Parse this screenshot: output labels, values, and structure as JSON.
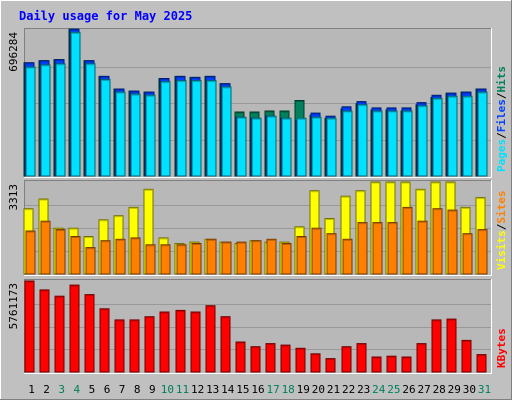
{
  "title": "Daily usage for May 2025",
  "colors": {
    "background": "#c0c0c0",
    "plot_background": "#b8b8b8",
    "title": "#0000ff",
    "hits": "#00805c",
    "files": "#0040ff",
    "pages": "#00e0ff",
    "visits": "#ffff00",
    "sites": "#ff8000",
    "kbytes": "#ff0000",
    "weekend_day": "#00805c",
    "weekday": "#000000"
  },
  "chart_data": [
    {
      "type": "bar",
      "panel": "hits-files-pages",
      "y_tick_label": "696284",
      "ylim": [
        0,
        696284
      ],
      "grid": true,
      "legend_placement": "right",
      "legend": [
        {
          "text": "Hits",
          "color": "#00805c"
        },
        {
          "text": "/",
          "color": "#000000"
        },
        {
          "text": "Files",
          "color": "#0040ff"
        },
        {
          "text": "/",
          "color": "#000000"
        },
        {
          "text": "Pages",
          "color": "#00e0ff"
        }
      ],
      "categories": [
        "1",
        "2",
        "3",
        "4",
        "5",
        "6",
        "7",
        "8",
        "9",
        "10",
        "11",
        "12",
        "13",
        "14",
        "15",
        "16",
        "17",
        "18",
        "19",
        "20",
        "21",
        "22",
        "23",
        "24",
        "25",
        "26",
        "27",
        "28",
        "29",
        "30",
        "31"
      ],
      "series": [
        {
          "name": "Hits",
          "color": "#00805c",
          "values": [
            540000,
            550000,
            555000,
            700000,
            550000,
            475000,
            415000,
            405000,
            400000,
            465000,
            475000,
            470000,
            475000,
            440000,
            305000,
            305000,
            310000,
            310000,
            360000,
            290000,
            275000,
            320000,
            345000,
            315000,
            315000,
            310000,
            340000,
            375000,
            395000,
            400000,
            415000
          ]
        },
        {
          "name": "Files",
          "color": "#0040ff",
          "values": [
            540000,
            550000,
            555000,
            700000,
            550000,
            475000,
            415000,
            405000,
            400000,
            465000,
            475000,
            470000,
            475000,
            440000,
            280000,
            275000,
            285000,
            275000,
            265000,
            300000,
            285000,
            330000,
            355000,
            325000,
            325000,
            325000,
            350000,
            385000,
            395000,
            400000,
            415000
          ]
        },
        {
          "name": "Pages",
          "color": "#00e0ff",
          "values": [
            520000,
            530000,
            535000,
            685000,
            535000,
            460000,
            400000,
            390000,
            385000,
            450000,
            455000,
            455000,
            455000,
            425000,
            280000,
            275000,
            285000,
            275000,
            275000,
            280000,
            275000,
            310000,
            340000,
            310000,
            310000,
            310000,
            335000,
            370000,
            380000,
            380000,
            400000
          ]
        }
      ]
    },
    {
      "type": "bar",
      "panel": "visits-sites",
      "y_tick_label": "3313",
      "ylim": [
        0,
        3313
      ],
      "grid": true,
      "legend_placement": "right",
      "legend": [
        {
          "text": "Sites",
          "color": "#ff8000"
        },
        {
          "text": "/",
          "color": "#000000"
        },
        {
          "text": "Visits",
          "color": "#ffff00"
        }
      ],
      "categories": [
        "1",
        "2",
        "3",
        "4",
        "5",
        "6",
        "7",
        "8",
        "9",
        "10",
        "11",
        "12",
        "13",
        "14",
        "15",
        "16",
        "17",
        "18",
        "19",
        "20",
        "21",
        "22",
        "23",
        "24",
        "25",
        "26",
        "27",
        "28",
        "29",
        "30",
        "31"
      ],
      "series": [
        {
          "name": "Visits",
          "color": "#ffff00",
          "values": [
            2350,
            2700,
            1650,
            1650,
            1350,
            1950,
            2100,
            2400,
            3050,
            1300,
            1100,
            1150,
            1250,
            1150,
            1100,
            1200,
            1150,
            1150,
            1700,
            3000,
            2000,
            2800,
            3000,
            3313,
            3313,
            3313,
            3050,
            3313,
            3313,
            2400,
            2750
          ]
        },
        {
          "name": "Sites",
          "color": "#ff8000",
          "values": [
            1550,
            1900,
            1600,
            1350,
            950,
            1200,
            1250,
            1300,
            1050,
            1050,
            1050,
            1100,
            1250,
            1150,
            1150,
            1200,
            1250,
            1100,
            1350,
            1650,
            1450,
            1250,
            1850,
            1850,
            1850,
            2400,
            1900,
            2350,
            2300,
            1450,
            1600
          ]
        }
      ]
    },
    {
      "type": "bar",
      "panel": "kbytes",
      "y_tick_label": "5761173",
      "ylim": [
        0,
        5761173
      ],
      "grid": true,
      "legend_placement": "right",
      "legend": [
        {
          "text": "KBytes",
          "color": "#ff0000"
        }
      ],
      "categories": [
        "1",
        "2",
        "3",
        "4",
        "5",
        "6",
        "7",
        "8",
        "9",
        "10",
        "11",
        "12",
        "13",
        "14",
        "15",
        "16",
        "17",
        "18",
        "19",
        "20",
        "21",
        "22",
        "23",
        "24",
        "25",
        "26",
        "27",
        "28",
        "29",
        "30",
        "31"
      ],
      "series": [
        {
          "name": "KBytes",
          "color": "#ff0000",
          "values": [
            5761173,
            5200000,
            4800000,
            5500000,
            4900000,
            4000000,
            3300000,
            3300000,
            3500000,
            3800000,
            3900000,
            3800000,
            4200000,
            3500000,
            1900000,
            1600000,
            1800000,
            1700000,
            1500000,
            1150000,
            850000,
            1600000,
            1800000,
            950000,
            1000000,
            950000,
            1800000,
            3300000,
            3350000,
            2000000,
            1100000
          ]
        }
      ]
    }
  ],
  "days": [
    {
      "label": "1",
      "weekend": false
    },
    {
      "label": "2",
      "weekend": false
    },
    {
      "label": "3",
      "weekend": true
    },
    {
      "label": "4",
      "weekend": true
    },
    {
      "label": "5",
      "weekend": false
    },
    {
      "label": "6",
      "weekend": false
    },
    {
      "label": "7",
      "weekend": false
    },
    {
      "label": "8",
      "weekend": false
    },
    {
      "label": "9",
      "weekend": false
    },
    {
      "label": "10",
      "weekend": true
    },
    {
      "label": "11",
      "weekend": true
    },
    {
      "label": "12",
      "weekend": false
    },
    {
      "label": "13",
      "weekend": false
    },
    {
      "label": "14",
      "weekend": false
    },
    {
      "label": "15",
      "weekend": false
    },
    {
      "label": "16",
      "weekend": false
    },
    {
      "label": "17",
      "weekend": true
    },
    {
      "label": "18",
      "weekend": true
    },
    {
      "label": "19",
      "weekend": false
    },
    {
      "label": "20",
      "weekend": false
    },
    {
      "label": "21",
      "weekend": false
    },
    {
      "label": "22",
      "weekend": false
    },
    {
      "label": "23",
      "weekend": false
    },
    {
      "label": "24",
      "weekend": true
    },
    {
      "label": "25",
      "weekend": true
    },
    {
      "label": "26",
      "weekend": false
    },
    {
      "label": "27",
      "weekend": false
    },
    {
      "label": "28",
      "weekend": false
    },
    {
      "label": "29",
      "weekend": false
    },
    {
      "label": "30",
      "weekend": false
    },
    {
      "label": "31",
      "weekend": true
    }
  ]
}
